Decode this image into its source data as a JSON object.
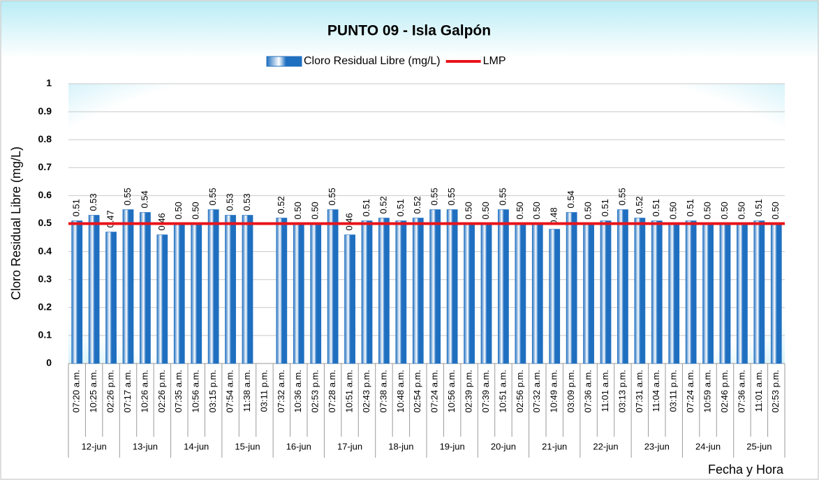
{
  "chart_data": {
    "type": "bar",
    "title": "PUNTO 09 - Isla Galpón",
    "x_label": "Fecha y Hora",
    "y_label": "Cloro Residual Libre (mg/L)",
    "date_groups": [
      "12-jun",
      "13-jun",
      "14-jun",
      "15-jun",
      "16-jun",
      "17-jun",
      "18-jun",
      "19-jun",
      "20-jun",
      "21-jun",
      "22-jun",
      "23-jun",
      "24-jun",
      "25-jun"
    ],
    "categories": [
      "07:20 a.m.",
      "10:25 a.m.",
      "02:26 p.m.",
      "07:17 a.m.",
      "10:26 a.m.",
      "02:26 p.m.",
      "07:35 a.m.",
      "10:56 a.m.",
      "03:15 p.m.",
      "07:54 a.m.",
      "11:38 a.m.",
      "03:11 p.m.",
      "07:32 a.m.",
      "10:36 a.m.",
      "02:53 p.m.",
      "07:28 a.m.",
      "10:51 a.m.",
      "02:43 p.m.",
      "07:38 a.m.",
      "10:48 a.m.",
      "02:54 p.m.",
      "07:24 a.m.",
      "10:56 a.m.",
      "02:39 p.m.",
      "07:39 a.m.",
      "10:51 a.m.",
      "02:56 p.m.",
      "07:32 a.m.",
      "10:49 a.m.",
      "03:09 p.m.",
      "07:36 a.m.",
      "11:01 a.m.",
      "03:13 p.m.",
      "07:31 a.m.",
      "11:04 a.m.",
      "03:11 p.m.",
      "07:24 a.m.",
      "10:59 a.m.",
      "02:46 p.m.",
      "07:36 a.m.",
      "11:01 a.m.",
      "02:53 p.m."
    ],
    "series": [
      {
        "name": "Cloro Residual Libre (mg/L)",
        "type": "bar",
        "color": "#1f6fc0",
        "values": [
          0.51,
          0.53,
          0.47,
          0.55,
          0.54,
          0.46,
          0.5,
          0.5,
          0.55,
          0.53,
          0.53,
          null,
          0.52,
          0.5,
          0.5,
          0.55,
          0.46,
          0.51,
          0.52,
          0.51,
          0.52,
          0.55,
          0.55,
          0.5,
          0.5,
          0.55,
          0.5,
          0.5,
          0.48,
          0.54,
          0.5,
          0.51,
          0.55,
          0.52,
          0.51,
          0.5,
          0.51,
          0.5,
          0.5,
          0.5,
          0.51,
          0.5
        ],
        "value_labels": [
          "0.51",
          "0.53",
          "0.47",
          "0.55",
          "0.54",
          "0.46",
          "0.50",
          "0.50",
          "0.55",
          "0.53",
          "0.53",
          null,
          "0.52",
          "0.50",
          "0.50",
          "0.55",
          "0.46",
          "0.51",
          "0.52",
          "0.51",
          "0.52",
          "0.55",
          "0.55",
          "0.50",
          "0.50",
          "0.55",
          "0.50",
          "0.50",
          "0.48",
          "0.54",
          "0.50",
          "0.51",
          "0.55",
          "0.52",
          "0.51",
          "0.50",
          "0.51",
          "0.50",
          "0.50",
          "0.50",
          "0.51",
          "0.50"
        ]
      },
      {
        "name": "LMP",
        "type": "line",
        "color": "#e8141b",
        "values": [
          0.5,
          0.5,
          0.5,
          0.5,
          0.5,
          0.5,
          0.5,
          0.5,
          0.5,
          0.5,
          0.5,
          0.5,
          0.5,
          0.5,
          0.5,
          0.5,
          0.5,
          0.5,
          0.5,
          0.5,
          0.5,
          0.5,
          0.5,
          0.5,
          0.5,
          0.5,
          0.5,
          0.5,
          0.5,
          0.5,
          0.5,
          0.5,
          0.5,
          0.5,
          0.5,
          0.5,
          0.5,
          0.5,
          0.5,
          0.5,
          0.5,
          0.5
        ]
      }
    ],
    "ylim": [
      0,
      1
    ],
    "yticks": [
      0,
      0.1,
      0.2,
      0.3,
      0.4,
      0.5,
      0.6,
      0.7,
      0.8,
      0.9,
      1
    ],
    "grid": true
  }
}
